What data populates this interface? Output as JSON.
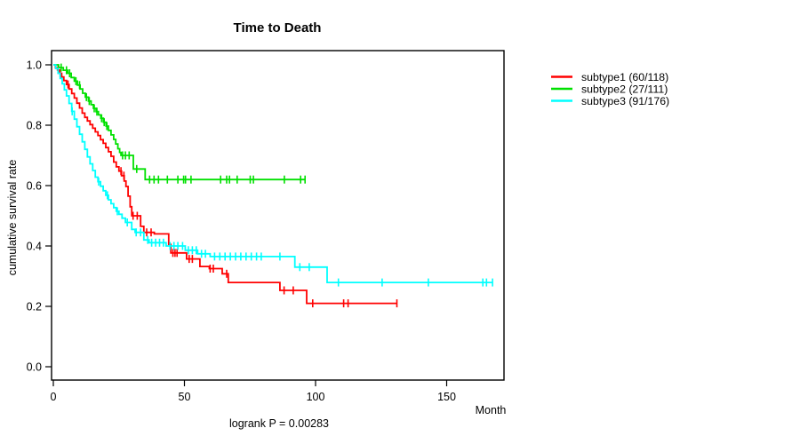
{
  "colors": {
    "background": "#ffffff",
    "axis": "#000000",
    "text": "#000000"
  },
  "chart_data": {
    "type": "line",
    "variant": "kaplan-meier-step-curves",
    "title": "Time to Death",
    "xlabel": "Month",
    "ylabel": "cumulative survival rate",
    "annotation": "logrank P = 0.00283",
    "grid": false,
    "legend_position": "right-outside",
    "xlim": [
      0,
      172
    ],
    "ylim": [
      0,
      1
    ],
    "xticks": [
      0,
      50,
      100,
      150
    ],
    "yticks": [
      "0.0",
      "0.2",
      "0.4",
      "0.6",
      "0.8",
      "1.0"
    ],
    "series": [
      {
        "name": "subtype1",
        "legend_label": "subtype1 (60/118)",
        "events": 60,
        "n": 118,
        "color": "#ff0000",
        "end_time": 131,
        "steps": [
          [
            0,
            1.0
          ],
          [
            0.8,
            0.99
          ],
          [
            1.6,
            0.983
          ],
          [
            2.4,
            0.972
          ],
          [
            3.2,
            0.96
          ],
          [
            4,
            0.948
          ],
          [
            5,
            0.935
          ],
          [
            6,
            0.92
          ],
          [
            7,
            0.905
          ],
          [
            8,
            0.89
          ],
          [
            9,
            0.873
          ],
          [
            10,
            0.857
          ],
          [
            11,
            0.84
          ],
          [
            12,
            0.826
          ],
          [
            13,
            0.814
          ],
          [
            14,
            0.802
          ],
          [
            15,
            0.79
          ],
          [
            16,
            0.778
          ],
          [
            17,
            0.766
          ],
          [
            18,
            0.752
          ],
          [
            19,
            0.74
          ],
          [
            20,
            0.726
          ],
          [
            21,
            0.712
          ],
          [
            22,
            0.697
          ],
          [
            23,
            0.678
          ],
          [
            24,
            0.662
          ],
          [
            25,
            0.648
          ],
          [
            26,
            0.633
          ],
          [
            27,
            0.615
          ],
          [
            27.7,
            0.597
          ],
          [
            28.5,
            0.565
          ],
          [
            29.3,
            0.53
          ],
          [
            29.9,
            0.5
          ],
          [
            33.3,
            0.465
          ],
          [
            34.5,
            0.445
          ],
          [
            38.5,
            0.44
          ],
          [
            44,
            0.405
          ],
          [
            44.8,
            0.377
          ],
          [
            50.8,
            0.357
          ],
          [
            55.9,
            0.332
          ],
          [
            59.5,
            0.325
          ],
          [
            64.4,
            0.308
          ],
          [
            66.7,
            0.279
          ],
          [
            86.4,
            0.253
          ],
          [
            96.6,
            0.21
          ]
        ],
        "censor_times": [
          1.8,
          2.6,
          5.6,
          25.8,
          26.9,
          30.4,
          32,
          35.6,
          37.3,
          45.6,
          46.4,
          47.2,
          51.8,
          53,
          59.8,
          61,
          66.1,
          88,
          91.5,
          98.9,
          110.7,
          112.4,
          131
        ]
      },
      {
        "name": "subtype2",
        "legend_label": "subtype2 (27/111)",
        "events": 27,
        "n": 111,
        "color": "#00e000",
        "end_time": 96,
        "steps": [
          [
            0,
            1.0
          ],
          [
            2,
            0.991
          ],
          [
            3.8,
            0.982
          ],
          [
            5.5,
            0.972
          ],
          [
            6.8,
            0.958
          ],
          [
            8,
            0.946
          ],
          [
            9.2,
            0.933
          ],
          [
            10.2,
            0.92
          ],
          [
            11.2,
            0.906
          ],
          [
            12.2,
            0.893
          ],
          [
            13.4,
            0.88
          ],
          [
            14.4,
            0.868
          ],
          [
            15.3,
            0.856
          ],
          [
            16.3,
            0.845
          ],
          [
            17.2,
            0.834
          ],
          [
            18.1,
            0.823
          ],
          [
            19.1,
            0.81
          ],
          [
            20.1,
            0.797
          ],
          [
            21,
            0.783
          ],
          [
            22,
            0.768
          ],
          [
            23,
            0.753
          ],
          [
            23.8,
            0.738
          ],
          [
            24.6,
            0.722
          ],
          [
            25.3,
            0.71
          ],
          [
            25.8,
            0.7
          ],
          [
            30.5,
            0.655
          ],
          [
            35,
            0.62
          ]
        ],
        "censor_times": [
          3,
          5,
          6.2,
          8.6,
          10,
          12.6,
          13.7,
          15.6,
          16.6,
          18.4,
          19.4,
          20.4,
          26.4,
          27.5,
          28.9,
          31.8,
          36.7,
          38.4,
          40.1,
          43.5,
          47.5,
          49.7,
          50.4,
          52.5,
          63.8,
          66.1,
          67.2,
          70.1,
          75.1,
          76.3,
          88.1,
          94.3,
          96
        ]
      },
      {
        "name": "subtype3",
        "legend_label": "subtype3 (91/176)",
        "events": 91,
        "n": 176,
        "color": "#00ffff",
        "end_time": 167.5,
        "steps": [
          [
            0,
            1.0
          ],
          [
            0.9,
            0.988
          ],
          [
            1.8,
            0.972
          ],
          [
            2.6,
            0.955
          ],
          [
            3.4,
            0.937
          ],
          [
            4.2,
            0.917
          ],
          [
            5,
            0.897
          ],
          [
            6,
            0.872
          ],
          [
            7,
            0.846
          ],
          [
            8,
            0.82
          ],
          [
            9,
            0.795
          ],
          [
            10,
            0.77
          ],
          [
            11,
            0.745
          ],
          [
            12,
            0.72
          ],
          [
            13,
            0.695
          ],
          [
            14,
            0.672
          ],
          [
            15,
            0.65
          ],
          [
            16,
            0.628
          ],
          [
            17,
            0.613
          ],
          [
            18,
            0.598
          ],
          [
            19,
            0.583
          ],
          [
            20,
            0.568
          ],
          [
            21,
            0.553
          ],
          [
            22,
            0.54
          ],
          [
            23,
            0.527
          ],
          [
            24,
            0.515
          ],
          [
            25,
            0.505
          ],
          [
            26.2,
            0.492
          ],
          [
            27.5,
            0.478
          ],
          [
            29.9,
            0.455
          ],
          [
            31.2,
            0.445
          ],
          [
            34.5,
            0.42
          ],
          [
            36.5,
            0.411
          ],
          [
            43,
            0.4
          ],
          [
            50.3,
            0.386
          ],
          [
            55,
            0.374
          ],
          [
            59.8,
            0.365
          ],
          [
            92.1,
            0.33
          ],
          [
            104.4,
            0.279
          ]
        ],
        "censor_times": [
          7.2,
          17.3,
          20.6,
          24.4,
          28.2,
          31.6,
          33.3,
          36,
          37.5,
          39,
          40.5,
          42,
          44.5,
          46,
          47.5,
          49.3,
          51.5,
          53,
          54.5,
          56.5,
          58,
          61.5,
          63.5,
          65.5,
          67.5,
          69.5,
          71.5,
          73.5,
          75.5,
          77.5,
          79.3,
          86.4,
          94,
          97.6,
          108.7,
          125.4,
          143,
          163.8,
          165.2,
          167.5
        ]
      }
    ]
  }
}
